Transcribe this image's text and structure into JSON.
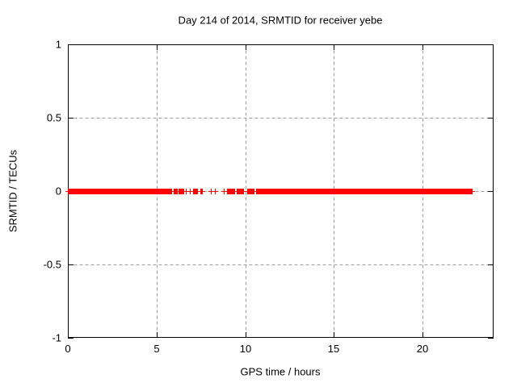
{
  "chart_data": {
    "type": "scatter",
    "title": "Day 214 of 2014, SRMTID for receiver yebe",
    "xlabel": "GPS time / hours",
    "ylabel": "SRMTID / TECUs",
    "xlim": [
      0,
      24
    ],
    "ylim": [
      -1,
      1
    ],
    "xtick_values": [
      0,
      5,
      10,
      15,
      20
    ],
    "xtick_labels": [
      "0",
      "5",
      "10",
      "15",
      "20"
    ],
    "ytick_values": [
      1,
      0.5,
      0,
      -0.5,
      -1
    ],
    "ytick_labels": [
      "1",
      "0.5",
      "0",
      "-0.5",
      "-1"
    ],
    "grid": true,
    "legend": "none",
    "marker": "plus",
    "series_y_value": 0,
    "dense_segments_x_hours": [
      [
        0.0,
        5.83
      ],
      [
        5.94,
        6.18
      ],
      [
        6.22,
        6.52
      ],
      [
        7.03,
        7.33
      ],
      [
        7.45,
        7.6
      ],
      [
        8.93,
        9.4
      ],
      [
        9.48,
        9.9
      ],
      [
        10.08,
        10.48
      ],
      [
        10.58,
        22.8
      ]
    ],
    "isolated_points_x_hours": [
      6.66,
      6.89,
      8.06,
      8.27,
      8.77
    ],
    "data_x_range_hours": [
      0.0,
      22.8
    ],
    "colors": {
      "points": "#ff0000",
      "grid": "#9c9c9c",
      "axis": "#000000",
      "background": "#ffffff",
      "text": "#000000"
    }
  }
}
